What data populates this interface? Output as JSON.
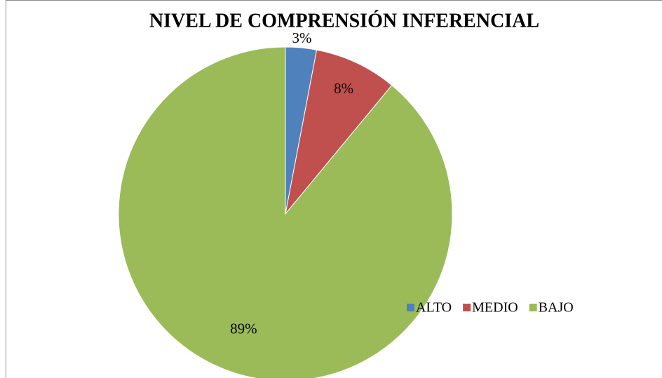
{
  "chart_data": {
    "type": "pie",
    "title": "NIVEL DE COMPRENSIÓN INFERENCIAL",
    "categories": [
      "ALTO",
      "MEDIO",
      "BAJO"
    ],
    "values": [
      3,
      8,
      89
    ],
    "value_labels": [
      "3%",
      "8%",
      "89%"
    ],
    "colors": [
      "#4f81bd",
      "#c0504d",
      "#9bbb59"
    ],
    "legend": "right"
  }
}
